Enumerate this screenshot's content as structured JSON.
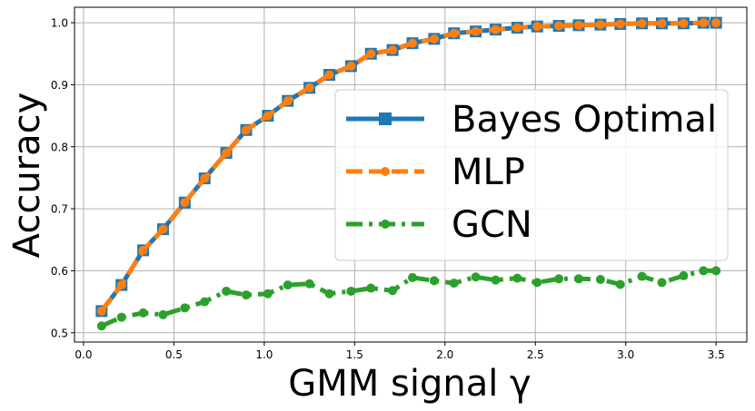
{
  "chart_data": {
    "type": "line",
    "xlabel": "GMM signal γ",
    "ylabel": "Accuracy",
    "xlim": [
      -0.05,
      3.67
    ],
    "ylim": [
      0.485,
      1.025
    ],
    "xticks": [
      0.0,
      0.5,
      1.0,
      1.5,
      2.0,
      2.5,
      3.0,
      3.5
    ],
    "yticks": [
      0.5,
      0.6,
      0.7,
      0.8,
      0.9,
      1.0
    ],
    "xtick_labels": [
      "0.0",
      "0.5",
      "1.0",
      "1.5",
      "2.0",
      "2.5",
      "3.0",
      "3.5"
    ],
    "ytick_labels": [
      "0.5",
      "0.6",
      "0.7",
      "0.8",
      "0.9",
      "1.0"
    ],
    "grid": true,
    "legend_position": "center-right",
    "x": [
      0.1,
      0.21,
      0.33,
      0.44,
      0.56,
      0.67,
      0.79,
      0.9,
      1.02,
      1.13,
      1.25,
      1.36,
      1.48,
      1.59,
      1.71,
      1.82,
      1.94,
      2.05,
      2.17,
      2.28,
      2.4,
      2.51,
      2.63,
      2.74,
      2.86,
      2.97,
      3.09,
      3.2,
      3.32,
      3.43,
      3.5
    ],
    "series": [
      {
        "name": "Bayes Optimal",
        "color": "#1f77b4",
        "marker": "square",
        "linestyle": "solid",
        "values": [
          0.535,
          0.577,
          0.633,
          0.667,
          0.71,
          0.749,
          0.79,
          0.827,
          0.85,
          0.874,
          0.895,
          0.916,
          0.93,
          0.95,
          0.956,
          0.967,
          0.974,
          0.983,
          0.986,
          0.989,
          0.992,
          0.994,
          0.995,
          0.996,
          0.997,
          0.998,
          0.999,
          0.999,
          0.999,
          1.0,
          1.0
        ]
      },
      {
        "name": "MLP",
        "color": "#ff7f0e",
        "marker": "circle",
        "linestyle": "dashed",
        "values": [
          0.535,
          0.577,
          0.633,
          0.667,
          0.71,
          0.749,
          0.79,
          0.827,
          0.85,
          0.874,
          0.895,
          0.916,
          0.93,
          0.95,
          0.956,
          0.967,
          0.974,
          0.983,
          0.986,
          0.989,
          0.992,
          0.994,
          0.995,
          0.996,
          0.997,
          0.998,
          0.999,
          0.999,
          0.999,
          1.0,
          1.0
        ]
      },
      {
        "name": "GCN",
        "color": "#2ca02c",
        "marker": "circle",
        "linestyle": "dashdot",
        "values": [
          0.511,
          0.525,
          0.532,
          0.529,
          0.54,
          0.55,
          0.567,
          0.561,
          0.563,
          0.577,
          0.579,
          0.563,
          0.567,
          0.572,
          0.568,
          0.589,
          0.584,
          0.58,
          0.59,
          0.585,
          0.588,
          0.581,
          0.587,
          0.587,
          0.586,
          0.578,
          0.591,
          0.581,
          0.592,
          0.6,
          0.6
        ]
      }
    ]
  }
}
